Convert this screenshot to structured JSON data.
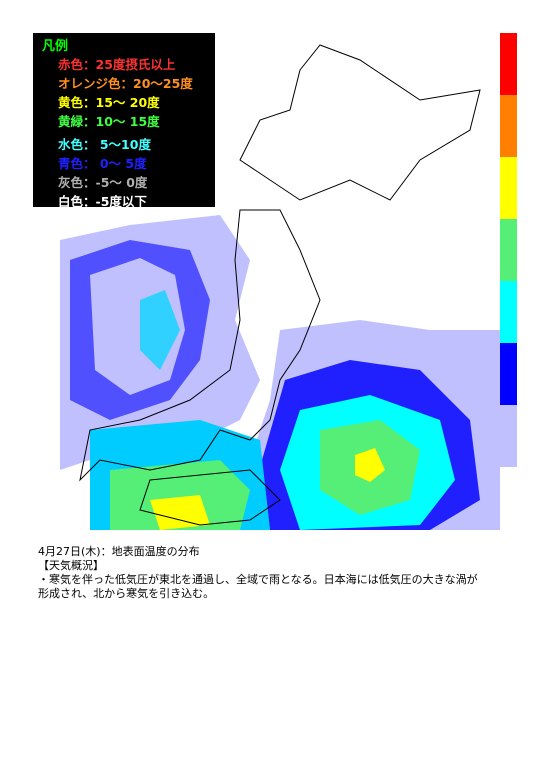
{
  "legend": {
    "title": "凡例",
    "title_color": "#00ff00",
    "items": [
      {
        "text": "赤色：25度摂氏以上",
        "color": "#ff3030"
      },
      {
        "text": "オレンジ色：20～25度",
        "color": "#ff9020"
      },
      {
        "text": "黄色：15～ 20度",
        "color": "#ffff00"
      },
      {
        "text": "黄緑：10～ 15度",
        "color": "#40ff40"
      },
      {
        "text": "水色： 5～10度",
        "color": "#40ffff"
      },
      {
        "text": "青色： 0～ 5度",
        "color": "#2020ff"
      },
      {
        "text": "灰色：-5～ 0度",
        "color": "#b0b0b0"
      },
      {
        "text": "白色：-5度以下",
        "color": "#ffffff"
      }
    ]
  },
  "colorbar": [
    "#ff0000",
    "#ff8000",
    "#ffff00",
    "#55ee77",
    "#00ffff",
    "#0000ff",
    "#c0c0ff"
  ],
  "caption": {
    "date": "4月27日(木)：地表面温度の分布",
    "heading": "【天気概況】",
    "lines": [
      "・寒気を伴った低気圧が東北を通過し、全域で雨となる。日本海には低気圧の大きな渦が",
      "形成され、北から寒気を引き込む。"
    ]
  }
}
